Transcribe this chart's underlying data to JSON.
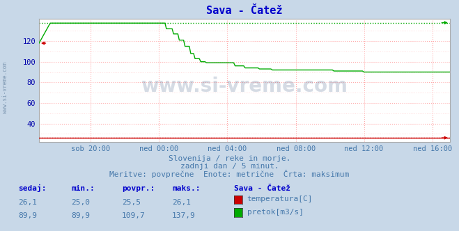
{
  "title": "Sava - Čatež",
  "title_color": "#0000cc",
  "bg_color": "#c8d8e8",
  "plot_bg_color": "#ffffff",
  "grid_color_major": "#ffaaaa",
  "grid_color_minor": "#ffdddd",
  "ylabel_color": "#0000aa",
  "xlabel_ticks": [
    "sob 20:00",
    "ned 00:00",
    "ned 04:00",
    "ned 08:00",
    "ned 12:00",
    "ned 16:00"
  ],
  "xlabel_tick_fracs": [
    0.125,
    0.291,
    0.458,
    0.625,
    0.791,
    0.958
  ],
  "ylim": [
    22,
    142
  ],
  "yticks": [
    40,
    60,
    80,
    100,
    120
  ],
  "flow_max": 137.9,
  "temp_max": 26.1,
  "temp_color": "#cc0000",
  "flow_color": "#00aa00",
  "watermark_text": "www.si-vreme.com",
  "watermark_color": "#1a3a6e",
  "watermark_alpha": 0.18,
  "subtitle1": "Slovenija / reke in morje.",
  "subtitle2": "zadnji dan / 5 minut.",
  "subtitle3": "Meritve: povprečne  Enote: metrične  Črta: maksimum",
  "subtitle_color": "#4477aa",
  "table_headers": [
    "sedaj:",
    "min.:",
    "povpr.:",
    "maks.:",
    "Sava - Čatež"
  ],
  "table_temp_vals": [
    "26,1",
    "25,0",
    "25,5",
    "26,1"
  ],
  "table_flow_vals": [
    "89,9",
    "89,9",
    "109,7",
    "137,9"
  ],
  "temp_label": "temperatura[C]",
  "flow_label": "pretok[m3/s]",
  "table_color": "#4477aa",
  "table_header_color": "#0000cc",
  "n_points": 288
}
